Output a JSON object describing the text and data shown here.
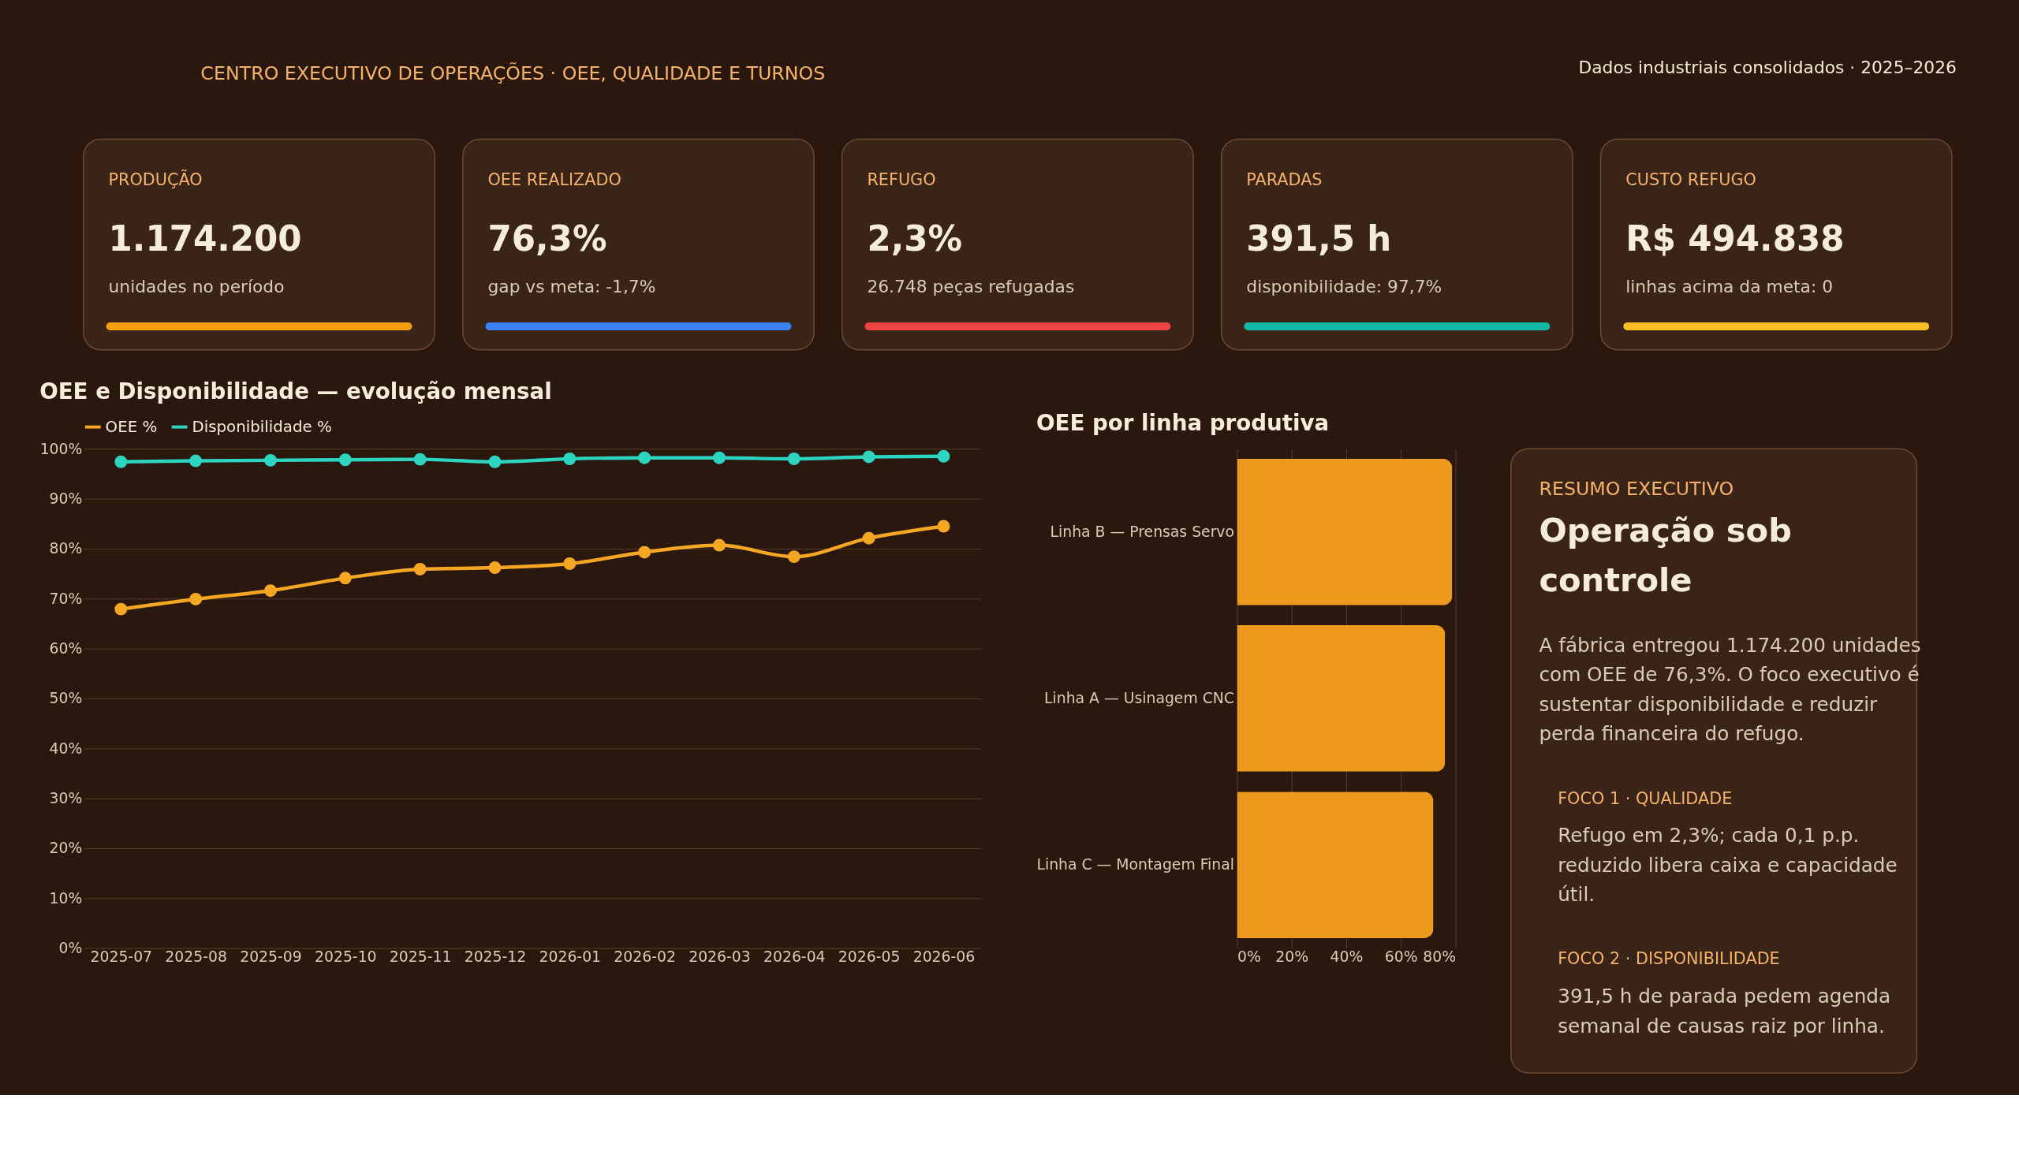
{
  "chart_data": [
    {
      "type": "other",
      "title": "CENTRO EXECUTIVO DE OPERAÇÕES · OEE, QUALIDADE E TURNOS",
      "annotations": [
        "Dados industriais consolidados · 2025–2026"
      ]
    },
    {
      "type": "other",
      "title": "PRODUÇÃO",
      "annotations": [
        "1.174.200",
        "unidades no período"
      ],
      "color": "#f59e0b"
    },
    {
      "type": "other",
      "title": "OEE REALIZADO",
      "annotations": [
        "76,3%",
        "gap vs meta: -1,7%"
      ],
      "color": "#3b82f6"
    },
    {
      "type": "other",
      "title": "REFUGO",
      "annotations": [
        "2,3%",
        "26.748 peças refugadas"
      ],
      "color": "#ef4444"
    },
    {
      "type": "other",
      "title": "PARADAS",
      "annotations": [
        "391,5 h",
        "disponibilidade: 97,7%"
      ],
      "color": "#14b8a6"
    },
    {
      "type": "other",
      "title": "CUSTO REFUGO",
      "annotations": [
        "R$ 494.838",
        "linhas acima da meta: 0"
      ],
      "color": "#fbbf24"
    },
    {
      "type": "line",
      "title": "OEE e Disponibilidade — evolução mensal",
      "categories": [
        "2025-07",
        "2025-08",
        "2025-09",
        "2025-10",
        "2025-11",
        "2025-12",
        "2026-01",
        "2026-02",
        "2026-03",
        "2026-04",
        "2026-05",
        "2026-06"
      ],
      "series": [
        {
          "name": "OEE %",
          "color": "#f5a623",
          "values": [
            67.9,
            69.9,
            71.6,
            74.1,
            75.9,
            76.2,
            77.0,
            79.3,
            80.7,
            78.4,
            82.1,
            84.5
          ]
        },
        {
          "name": "Disponibilidade %",
          "color": "#2dd4bf",
          "values": [
            97.4,
            97.6,
            97.7,
            97.8,
            97.9,
            97.4,
            98.0,
            98.2,
            98.2,
            98.0,
            98.4,
            98.5
          ]
        }
      ],
      "ylim": [
        0,
        100
      ],
      "yticks": [
        {
          "value": 0,
          "label": "0%"
        },
        {
          "value": 10,
          "label": "10%"
        },
        {
          "value": 20,
          "label": "20%"
        },
        {
          "value": 30,
          "label": "30%"
        },
        {
          "value": 40,
          "label": "40%"
        },
        {
          "value": 50,
          "label": "50%"
        },
        {
          "value": 60,
          "label": "60%"
        },
        {
          "value": 70,
          "label": "70%"
        },
        {
          "value": 80,
          "label": "80%"
        },
        {
          "value": 90,
          "label": "90%"
        },
        {
          "value": 100,
          "label": "100%"
        }
      ],
      "grid": "y",
      "legend": "top left",
      "marker": "circle",
      "line_style": "solid"
    },
    {
      "type": "bar",
      "title": "OEE por linha produtiva",
      "orientation": "horizontal",
      "categories": [
        "Linha B — Prensas Servo",
        "Linha A — Usinagem CNC",
        "Linha C — Montagem Final"
      ],
      "values": [
        78.8,
        76.2,
        71.9
      ],
      "color": "#ed9a1c",
      "xlim": [
        0,
        80
      ],
      "xticks": [
        {
          "value": 0,
          "label": "0%"
        },
        {
          "value": 20,
          "label": "20%"
        },
        {
          "value": 40,
          "label": "40%"
        },
        {
          "value": 60,
          "label": "60%"
        },
        {
          "value": 80,
          "label": "80%"
        }
      ],
      "grid": "x"
    },
    {
      "type": "other",
      "title": "RESUMO EXECUTIVO",
      "subtitle": "Operação sob controle",
      "annotations": [
        "A fábrica entregou 1.174.200 unidades com OEE de 76,3%. O foco executivo é sustentar disponibilidade e reduzir perda financeira do refugo.",
        "FOCO 1 · QUALIDADE",
        "Refugo em 2,3%; cada 0,1 p.p. reduzido libera caixa e capacidade útil.",
        "FOCO 2 · DISPONIBILIDADE",
        "391,5 h de parada pedem agenda semanal de causas raiz por linha."
      ]
    }
  ]
}
